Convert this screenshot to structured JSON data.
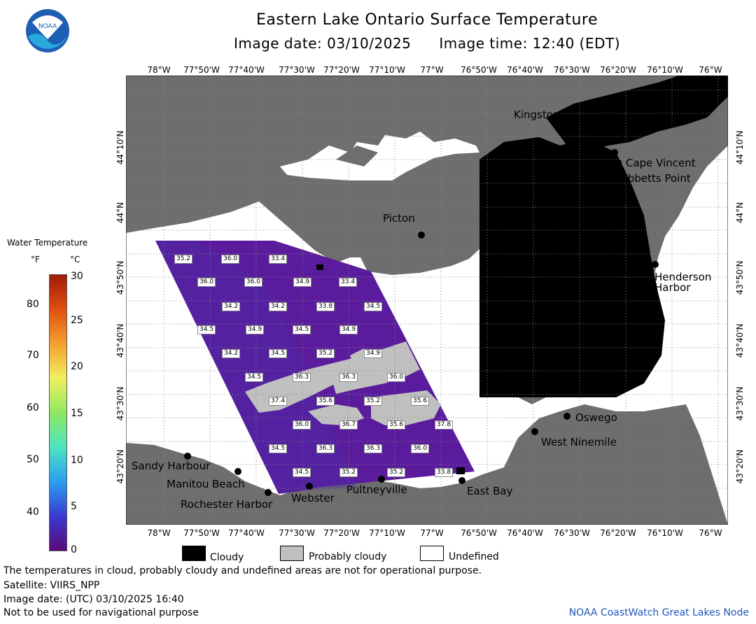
{
  "header": {
    "title": "Eastern Lake Ontario Surface Temperature",
    "date_label": "Image date: 03/10/2025",
    "time_label": "Image time: 12:40 (EDT)"
  },
  "logo": {
    "text": "NOAA"
  },
  "axes": {
    "lon_top": [
      "78°W",
      "77°50'W",
      "77°40'W",
      "77°30'W",
      "77°20'W",
      "77°10'W",
      "77°W",
      "76°50'W",
      "76°40'W",
      "76°30'W",
      "76°20'W",
      "76°10'W",
      "76°W"
    ],
    "lon_bottom": [
      "78°W",
      "77°50'W",
      "77°40'W",
      "77°30'W",
      "77°20'W",
      "77°10'W",
      "77°W",
      "76°50'W",
      "76°40'W",
      "76°30'W",
      "76°20'W",
      "76°10'W",
      "76°W"
    ],
    "lat_left": [
      "44°10'N",
      "44°N",
      "43°50'N",
      "43°40'N",
      "43°30'N",
      "43°20'N"
    ],
    "lat_right": [
      "44°10'N",
      "44°N",
      "43°50'N",
      "43°40'N",
      "43°30'N",
      "43°20'N"
    ]
  },
  "places": {
    "kingston": "Kingston",
    "cape_vincent": "Cape Vincent",
    "tibbetts_point": "Tibbetts Point",
    "picton": "Picton",
    "henderson_1": "Henderson",
    "henderson_2": "Harbor",
    "oswego": "Oswego",
    "west_ninemile": "West Ninemile",
    "sandy_harbour": "Sandy Harbour",
    "manitou_beach": "Manitou Beach",
    "rochester_harbor": "Rochester Harbor",
    "webster": "Webster",
    "pultneyville": "Pultneyville",
    "east_bay": "East Bay"
  },
  "temperatures": [
    "35.2",
    "36.0",
    "33.4",
    "36.0",
    "36.0",
    "34.9",
    "33.4",
    "34.2",
    "34.2",
    "33.8",
    "34.5",
    "34.5",
    "34.9",
    "34.5",
    "34.9",
    "34.2",
    "34.5",
    "35.2",
    "34.9",
    "34.5",
    "36.3",
    "36.3",
    "36.0",
    "37.4",
    "35.6",
    "35.2",
    "35.6",
    "36.0",
    "36.7",
    "35.6",
    "37.8",
    "34.5",
    "36.3",
    "36.3",
    "36.0",
    "34.5",
    "35.2",
    "35.2",
    "33.8"
  ],
  "legend": {
    "title": "Water Temperature",
    "unit_f": "°F",
    "unit_c": "°C",
    "ticks_f": [
      "80",
      "70",
      "60",
      "50",
      "40"
    ],
    "ticks_c": [
      "30",
      "25",
      "20",
      "15",
      "10",
      "5",
      "0"
    ],
    "colors": [
      "#5a0a7a",
      "#3a3ad0",
      "#2a9ff0",
      "#4ee4c0",
      "#8ee860",
      "#f0f060",
      "#f5a030",
      "#e05010",
      "#a01a08"
    ]
  },
  "key": {
    "cloudy": "Cloudy",
    "probably_cloudy": "Probably cloudy",
    "undefined": "Undefined",
    "colors": {
      "cloudy": "#000000",
      "probably_cloudy": "#c0c0c0",
      "undefined": "#ffffff",
      "land": "#6e6e6e",
      "water": "#5a1c9c"
    }
  },
  "footer": {
    "line1": "The temperatures in cloud, probably cloudy and undefined areas are not for operational purpose.",
    "line2": "Satellite: VIIRS_NPP",
    "line3": "Image date: (UTC) 03/10/2025  16:40",
    "line4": "Not to be used for navigational purpose",
    "credit": "NOAA CoastWatch Great Lakes Node"
  }
}
